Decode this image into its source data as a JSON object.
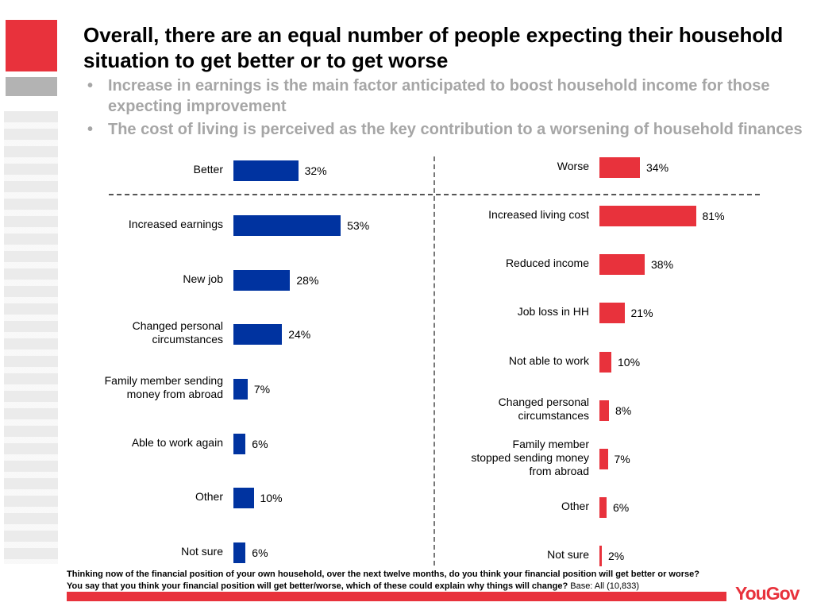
{
  "title": "Overall, there are an equal number of people expecting their household situation to get better or to get worse",
  "bullets": [
    "Increase in earnings is the main factor anticipated to boost household income for those expecting improvement",
    "The cost of living is perceived as the key contribution to a worsening of household finances"
  ],
  "chart_data": [
    {
      "type": "bar",
      "orientation": "horizontal",
      "color": "#0033a0",
      "categories": [
        "Better",
        "Increased earnings",
        "New job",
        "Changed personal circumstances",
        "Family member sending money from abroad",
        "Able to work again",
        "Other",
        "Not sure"
      ],
      "values": [
        32,
        53,
        28,
        24,
        7,
        6,
        10,
        6
      ],
      "value_labels": [
        "32%",
        "53%",
        "28%",
        "24%",
        "7%",
        "6%",
        "10%",
        "6%"
      ]
    },
    {
      "type": "bar",
      "orientation": "horizontal",
      "color": "#e8323c",
      "categories": [
        "Worse",
        "Increased living cost",
        "Reduced income",
        "Job loss in HH",
        "Not able to work",
        "Changed personal circumstances",
        "Family member stopped sending money from abroad",
        "Other",
        "Not sure"
      ],
      "values": [
        34,
        81,
        38,
        21,
        10,
        8,
        7,
        6,
        2
      ],
      "value_labels": [
        "34%",
        "81%",
        "38%",
        "21%",
        "10%",
        "8%",
        "7%",
        "6%",
        "2%"
      ]
    }
  ],
  "footnote": [
    "Thinking now of the financial position of your own household, over the next twelve months, do you think your financial position will get better or worse?",
    "You say that you think your financial position will get better/worse, which of these could explain why things will change?"
  ],
  "base": "Base: All (10,833)",
  "logo": "YouGov"
}
